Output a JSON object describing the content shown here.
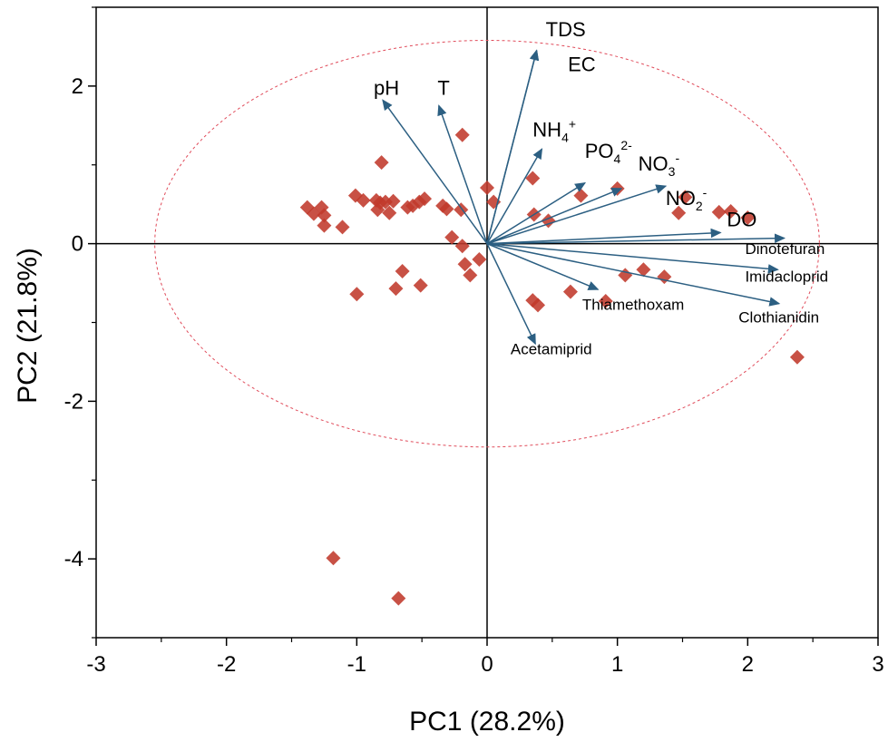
{
  "chart_data": {
    "type": "scatter",
    "subtype": "pca-biplot",
    "xlabel": "PC1 (28.2%)",
    "ylabel": "PC2 (21.8%)",
    "xlim": [
      -3,
      3
    ],
    "ylim": [
      -5,
      3
    ],
    "xticks": [
      -3,
      -2,
      -1,
      0,
      1,
      2,
      3
    ],
    "yticks": [
      -4,
      -2,
      0,
      2
    ],
    "grid": false,
    "zero_lines": true,
    "marker": {
      "shape": "diamond",
      "color": "#c0392b"
    },
    "arrow_color": "#2c5f82",
    "ellipse": {
      "cx": 0,
      "cy": 0,
      "rx": 2.55,
      "ry": 2.58,
      "color": "#e04b5a"
    },
    "points": [
      {
        "x": -1.38,
        "y": 0.46
      },
      {
        "x": -1.33,
        "y": 0.38
      },
      {
        "x": -1.27,
        "y": 0.46
      },
      {
        "x": -1.25,
        "y": 0.36
      },
      {
        "x": -1.25,
        "y": 0.23
      },
      {
        "x": -1.11,
        "y": 0.21
      },
      {
        "x": -1.01,
        "y": 0.61
      },
      {
        "x": -0.95,
        "y": 0.55
      },
      {
        "x": -0.85,
        "y": 0.55
      },
      {
        "x": -0.82,
        "y": 0.52
      },
      {
        "x": -0.84,
        "y": 0.43
      },
      {
        "x": -0.81,
        "y": 1.03
      },
      {
        "x": -0.78,
        "y": 0.53
      },
      {
        "x": -0.75,
        "y": 0.39
      },
      {
        "x": -0.72,
        "y": 0.54
      },
      {
        "x": -0.61,
        "y": 0.46
      },
      {
        "x": -0.57,
        "y": 0.48
      },
      {
        "x": -0.52,
        "y": 0.53
      },
      {
        "x": -0.48,
        "y": 0.57
      },
      {
        "x": -0.34,
        "y": 0.48
      },
      {
        "x": -0.31,
        "y": 0.44
      },
      {
        "x": -0.19,
        "y": 1.38
      },
      {
        "x": -0.2,
        "y": 0.43
      },
      {
        "x": 0.0,
        "y": 0.71
      },
      {
        "x": 0.05,
        "y": 0.53
      },
      {
        "x": -0.27,
        "y": 0.08
      },
      {
        "x": -0.19,
        "y": -0.03
      },
      {
        "x": -0.17,
        "y": -0.26
      },
      {
        "x": -0.13,
        "y": -0.4
      },
      {
        "x": -0.06,
        "y": -0.2
      },
      {
        "x": -0.65,
        "y": -0.35
      },
      {
        "x": -0.51,
        "y": -0.53
      },
      {
        "x": -0.7,
        "y": -0.57
      },
      {
        "x": -1.0,
        "y": -0.64
      },
      {
        "x": 0.35,
        "y": 0.83
      },
      {
        "x": 0.36,
        "y": 0.37
      },
      {
        "x": 0.47,
        "y": 0.29
      },
      {
        "x": 0.72,
        "y": 0.61
      },
      {
        "x": 0.35,
        "y": -0.72
      },
      {
        "x": 0.39,
        "y": -0.78
      },
      {
        "x": 0.64,
        "y": -0.61
      },
      {
        "x": 0.91,
        "y": -0.73
      },
      {
        "x": 1.06,
        "y": -0.4
      },
      {
        "x": 1.2,
        "y": -0.33
      },
      {
        "x": 1.36,
        "y": -0.42
      },
      {
        "x": 1.0,
        "y": 0.7
      },
      {
        "x": 1.47,
        "y": 0.39
      },
      {
        "x": 1.52,
        "y": 0.59
      },
      {
        "x": 1.78,
        "y": 0.4
      },
      {
        "x": 1.87,
        "y": 0.41
      },
      {
        "x": 2.0,
        "y": 0.33
      },
      {
        "x": 2.38,
        "y": -1.44
      },
      {
        "x": -1.18,
        "y": -3.99
      },
      {
        "x": -0.68,
        "y": -4.5
      }
    ],
    "vectors": [
      {
        "name": "TDS",
        "x": 0.38,
        "y": 2.45,
        "label_x": 0.45,
        "label_y": 2.63,
        "size": 22
      },
      {
        "name": "EC",
        "x": 0.38,
        "y": 2.45,
        "label_x": 0.62,
        "label_y": 2.19,
        "size": 22
      },
      {
        "name": "pH",
        "x": -0.8,
        "y": 1.82,
        "label_x": -0.87,
        "label_y": 1.89,
        "size": 22
      },
      {
        "name": "T",
        "x": -0.37,
        "y": 1.75,
        "label_x": -0.38,
        "label_y": 1.89,
        "size": 22
      },
      {
        "name": "NH4+",
        "x": 0.42,
        "y": 1.2,
        "label_x": 0.35,
        "label_y": 1.36,
        "size": 22,
        "base": "NH",
        "sub": "4",
        "sup": "+"
      },
      {
        "name": "PO4 2-",
        "x": 0.75,
        "y": 0.77,
        "label_x": 0.75,
        "label_y": 1.09,
        "size": 22,
        "base": "PO",
        "sub": "4",
        "sup": "2-"
      },
      {
        "name": "NO3-",
        "x": 1.37,
        "y": 0.73,
        "label_x": 1.16,
        "label_y": 0.93,
        "size": 22,
        "base": "NO",
        "sub": "3",
        "sup": "-"
      },
      {
        "name": "NO2-",
        "x": 1.03,
        "y": 0.7,
        "label_x": 1.37,
        "label_y": 0.49,
        "size": 22,
        "base": "NO",
        "sub": "2",
        "sup": "-"
      },
      {
        "name": "DO",
        "x": 1.79,
        "y": 0.14,
        "label_x": 1.84,
        "label_y": 0.22,
        "size": 22
      },
      {
        "name": "Dinotefuran",
        "x": 2.28,
        "y": 0.07,
        "label_x": 1.98,
        "label_y": -0.13,
        "size": 17
      },
      {
        "name": "Imidacloprid",
        "x": 2.23,
        "y": -0.33,
        "label_x": 1.98,
        "label_y": -0.48,
        "size": 17
      },
      {
        "name": "Clothianidin",
        "x": 2.24,
        "y": -0.76,
        "label_x": 1.93,
        "label_y": -1.0,
        "size": 17
      },
      {
        "name": "Thiamethoxam",
        "x": 0.85,
        "y": -0.58,
        "label_x": 0.73,
        "label_y": -0.84,
        "size": 17
      },
      {
        "name": "Acetamiprid",
        "x": 0.37,
        "y": -1.27,
        "label_x": 0.18,
        "label_y": -1.4,
        "size": 17
      }
    ]
  }
}
